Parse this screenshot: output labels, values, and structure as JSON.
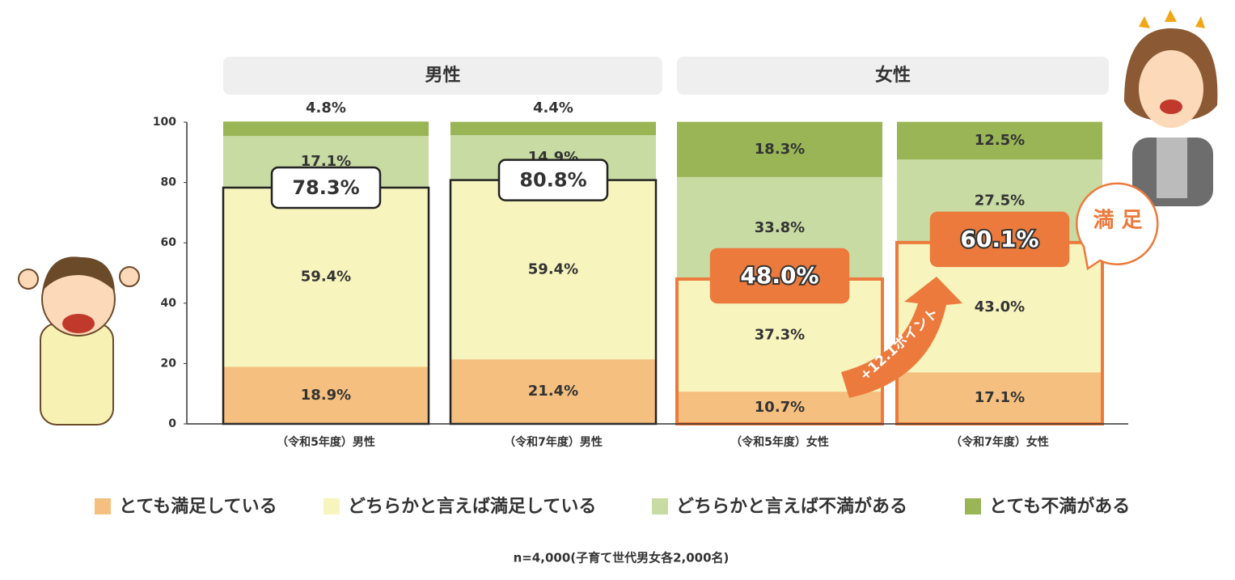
{
  "chart_data": {
    "type": "stacked_bar",
    "groups": [
      {
        "label": "男性",
        "span": 2
      },
      {
        "label": "女性",
        "span": 2
      }
    ],
    "categories": [
      "（令和5年度）男性",
      "（令和7年度）男性",
      "（令和5年度）女性",
      "（令和7年度）女性"
    ],
    "series": [
      {
        "name": "とても満足している",
        "color": "#f5c07f",
        "values": [
          18.9,
          21.4,
          10.7,
          17.1
        ],
        "value_labels": [
          "18.9%",
          "21.4%",
          "10.7%",
          "17.1%"
        ]
      },
      {
        "name": "どちらかと言えば満足している",
        "color": "#f7f4bd",
        "values": [
          59.4,
          59.4,
          37.3,
          43.0
        ],
        "value_labels": [
          "59.4%",
          "59.4%",
          "37.3%",
          "43.0%"
        ]
      },
      {
        "name": "どちらかと言えば不満がある",
        "color": "#c8dba3",
        "values": [
          17.1,
          14.9,
          33.8,
          27.5
        ],
        "value_labels": [
          "17.1%",
          "14.9%",
          "33.8%",
          "27.5%"
        ]
      },
      {
        "name": "とても不満がある",
        "color": "#99b556",
        "values": [
          4.8,
          4.4,
          18.3,
          12.5
        ],
        "value_labels": [
          "4.8%",
          "4.4%",
          "18.3%",
          "12.5%"
        ]
      }
    ],
    "callouts": {
      "values": [
        78.3,
        80.8,
        48.0,
        60.1
      ],
      "labels": [
        "78.3%",
        "80.8%",
        "48.0%",
        "60.1%"
      ],
      "outline_colors": [
        "#222222",
        "#222222",
        "#ec7a3c",
        "#ec7a3c"
      ],
      "fills": [
        "#ffffff",
        "#ffffff",
        "#ec7a3c",
        "#ec7a3c"
      ]
    },
    "ylim": [
      0,
      100
    ],
    "yticks": [
      0,
      20,
      40,
      60,
      80,
      100
    ],
    "annotations": {
      "arrow": "+12.1ポイント",
      "bubble": "満 足"
    },
    "footnote": "n=4,000(子育て世代男女各2,000名)"
  }
}
